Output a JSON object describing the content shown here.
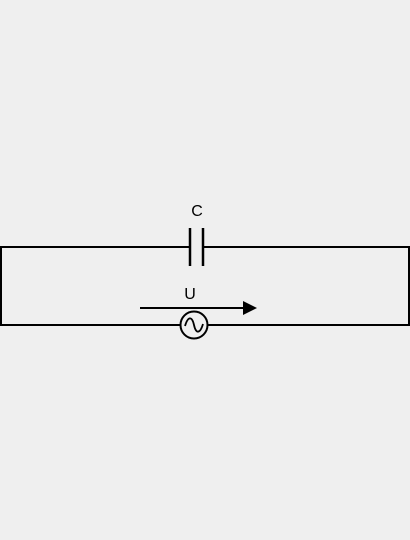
{
  "circuit": {
    "capacitor_label": "C",
    "voltage_label": "U",
    "source_type": "ac-voltage-source",
    "arrow_direction": "right"
  },
  "colors": {
    "background": "#efefef",
    "line": "#000000"
  }
}
